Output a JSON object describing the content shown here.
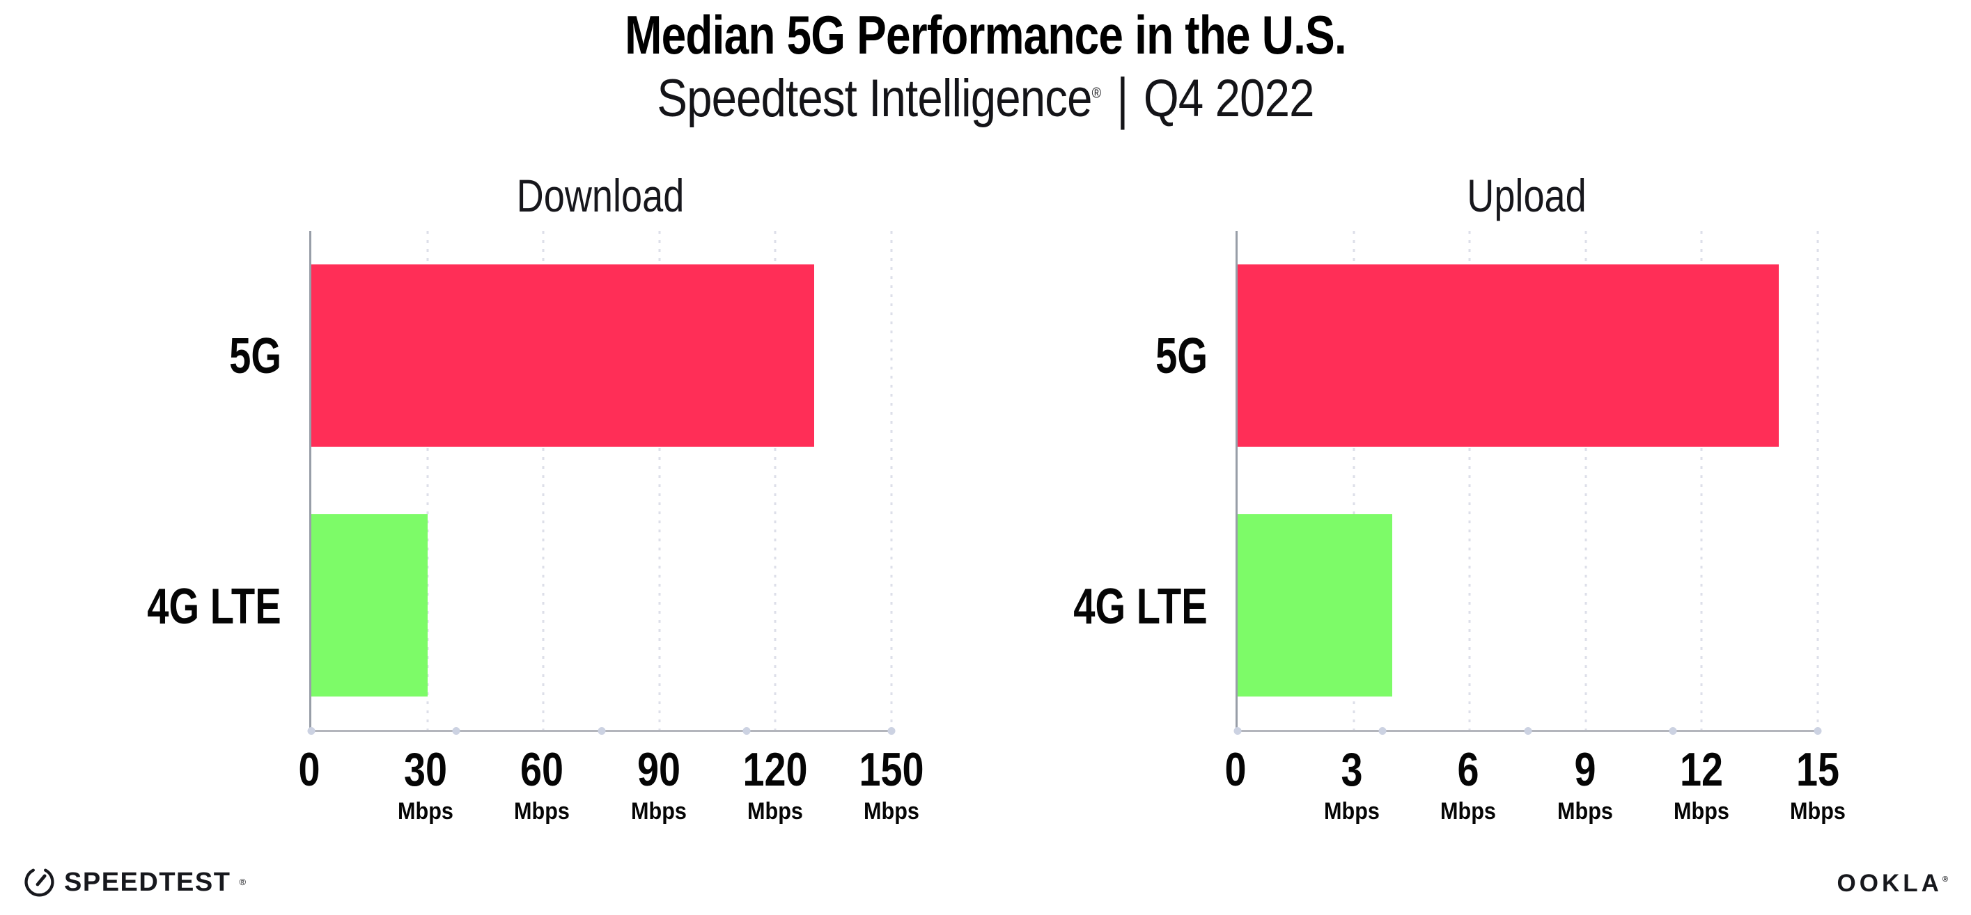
{
  "header": {
    "title": "Median 5G Performance in the U.S.",
    "subtitle_brand": "Speedtest Intelligence",
    "subtitle_reg": "®",
    "subtitle_sep": "|",
    "subtitle_period": "Q4 2022"
  },
  "chart_data": [
    {
      "type": "bar",
      "orientation": "horizontal",
      "title": "Download",
      "categories": [
        "5G",
        "4G LTE"
      ],
      "values": [
        130,
        30
      ],
      "unit": "Mbps",
      "xlim": [
        0,
        150
      ],
      "xticks": [
        0,
        30,
        60,
        90,
        120,
        150
      ],
      "bar_colors": [
        "#ff2e57",
        "#7dfb68"
      ],
      "grid": "dotted-vertical",
      "legend": "none"
    },
    {
      "type": "bar",
      "orientation": "horizontal",
      "title": "Upload",
      "categories": [
        "5G",
        "4G LTE"
      ],
      "values": [
        14,
        4
      ],
      "unit": "Mbps",
      "xlim": [
        0,
        15
      ],
      "xticks": [
        0,
        3,
        6,
        9,
        12,
        15
      ],
      "bar_colors": [
        "#ff2e57",
        "#7dfb68"
      ],
      "grid": "dotted-vertical",
      "legend": "none"
    }
  ],
  "footer": {
    "speedtest_wordmark": "SPEEDTEST",
    "speedtest_mark": "®",
    "ookla_wordmark": "OOKLA",
    "ookla_mark": "®"
  },
  "colors": {
    "bar_5g": "#ff2e57",
    "bar_4g_lte": "#7dfb68",
    "gridline": "#dddfe9",
    "axis": "#b3b5bc"
  }
}
